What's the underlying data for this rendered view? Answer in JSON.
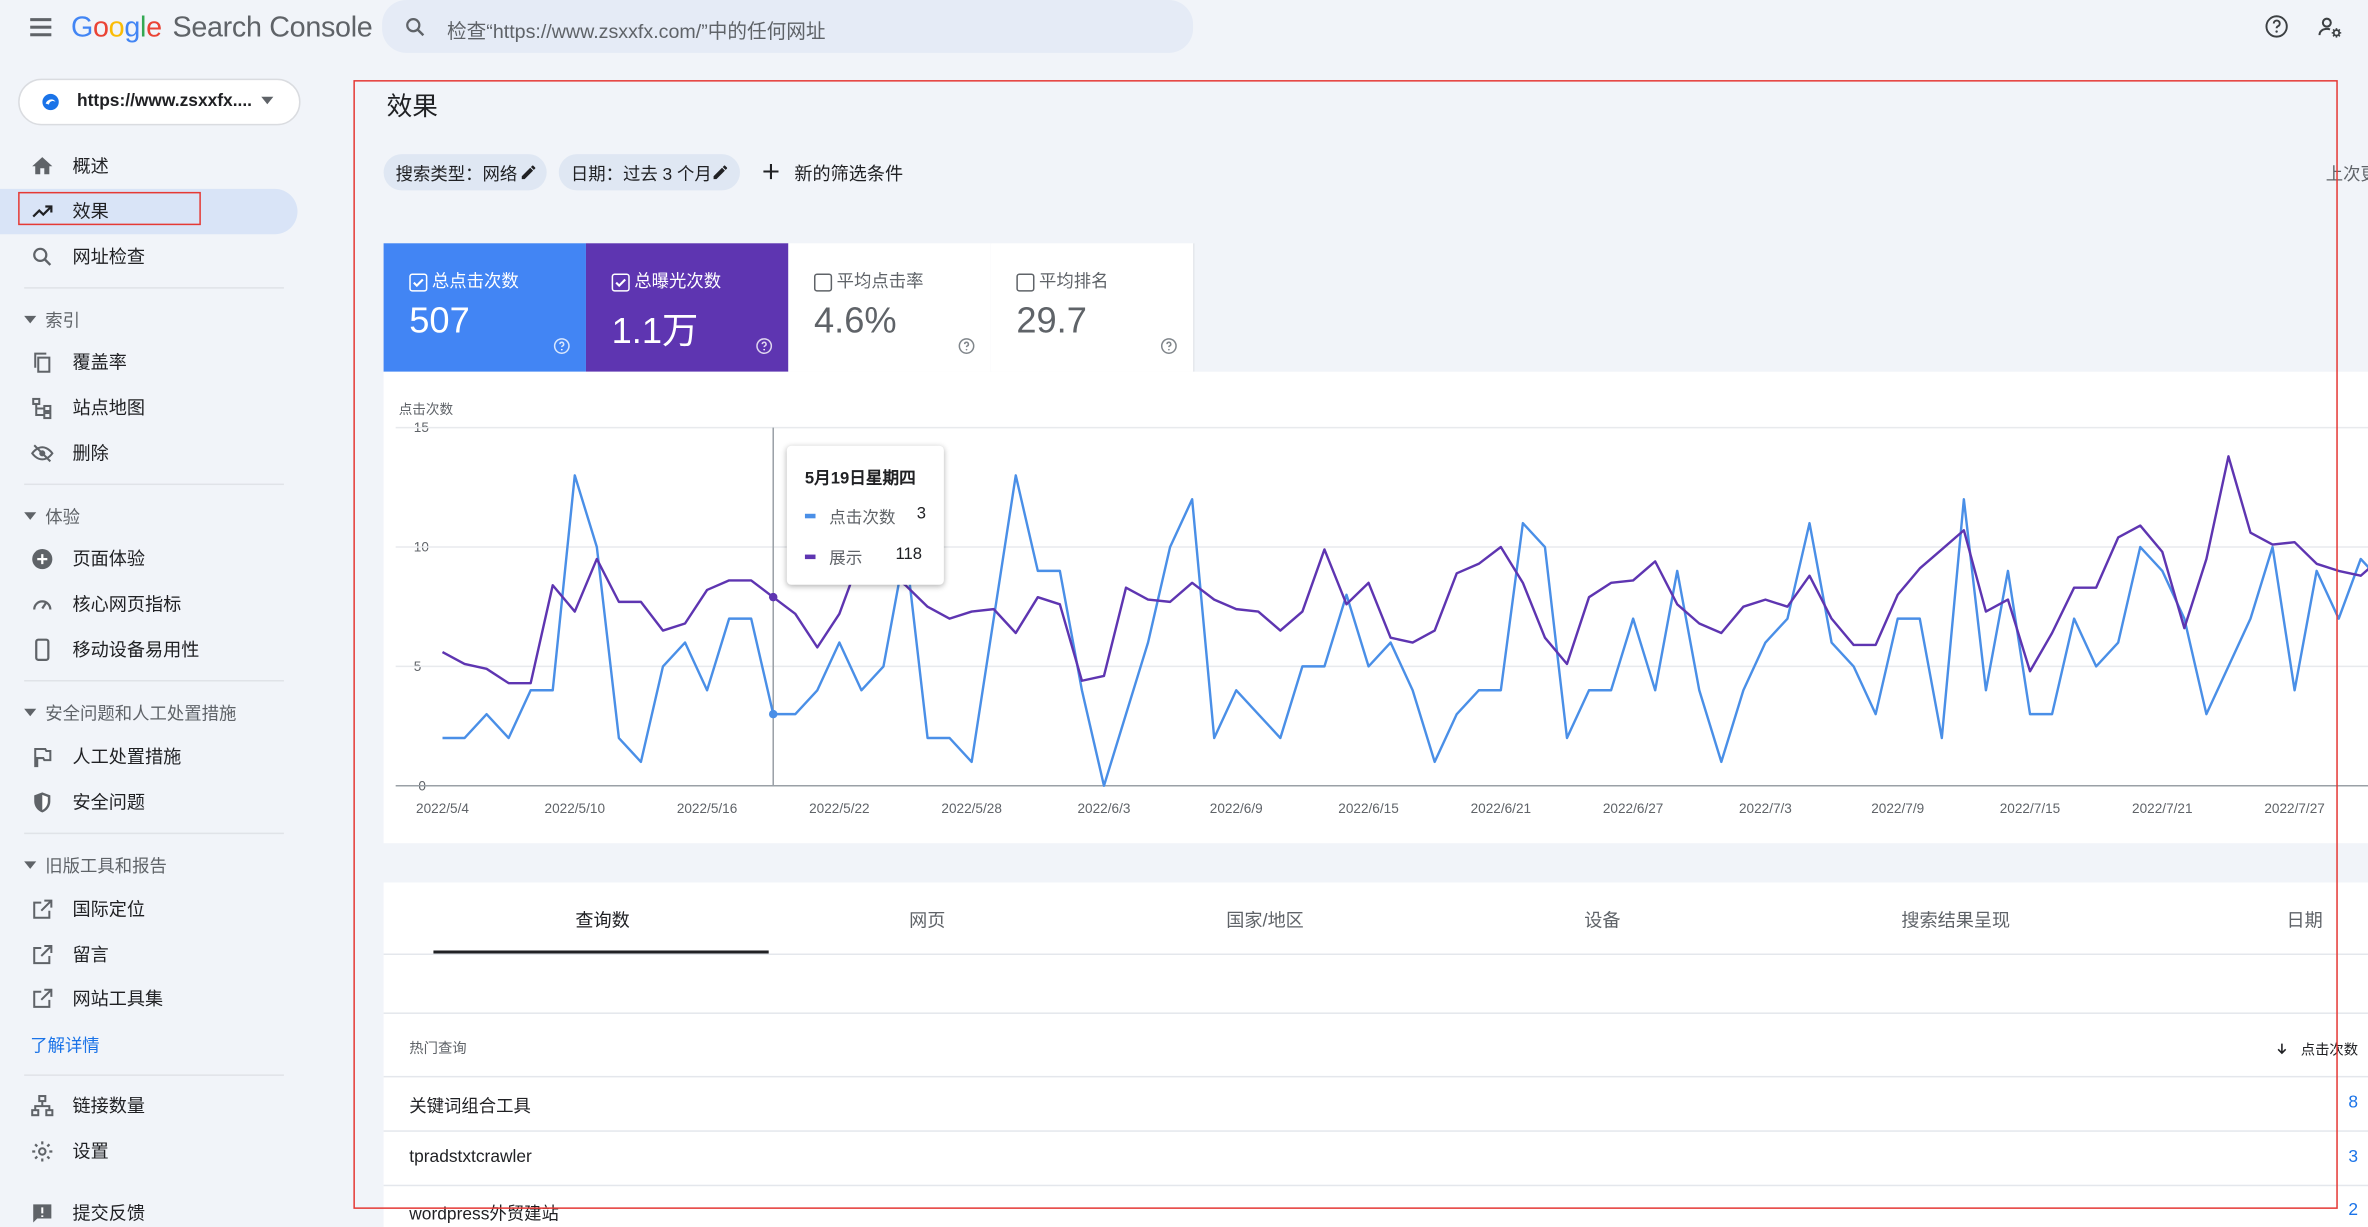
{
  "header": {
    "logo_google": [
      "G",
      "o",
      "o",
      "g",
      "l",
      "e"
    ],
    "logo_product": "Search Console",
    "search_placeholder": "检查“https://www.zsxxfx.com/”中的任何网址"
  },
  "sidebar": {
    "property": "https://www.zsxxfx....",
    "items": [
      {
        "label": "概述",
        "icon": "home-icon"
      },
      {
        "label": "效果",
        "icon": "trending-up-icon"
      },
      {
        "label": "网址检查",
        "icon": "search-icon"
      }
    ],
    "sections": [
      {
        "title": "索引",
        "items": [
          {
            "label": "覆盖率",
            "icon": "copy-icon"
          },
          {
            "label": "站点地图",
            "icon": "sitemap-icon"
          },
          {
            "label": "删除",
            "icon": "visibility-off-icon"
          }
        ]
      },
      {
        "title": "体验",
        "items": [
          {
            "label": "页面体验",
            "icon": "add-circle-icon"
          },
          {
            "label": "核心网页指标",
            "icon": "speed-icon"
          },
          {
            "label": "移动设备易用性",
            "icon": "smartphone-icon"
          }
        ]
      },
      {
        "title": "安全问题和人工处置措施",
        "items": [
          {
            "label": "人工处置措施",
            "icon": "flag-icon"
          },
          {
            "label": "安全问题",
            "icon": "shield-icon"
          }
        ]
      },
      {
        "title": "旧版工具和报告",
        "items": [
          {
            "label": "国际定位",
            "icon": "external-link-icon"
          },
          {
            "label": "留言",
            "icon": "external-link-icon"
          },
          {
            "label": "网站工具集",
            "icon": "external-link-icon"
          }
        ]
      }
    ],
    "learn_more": "了解详情",
    "footer_items": [
      {
        "label": "链接数量",
        "icon": "links-icon"
      },
      {
        "label": "设置",
        "icon": "gear-icon"
      },
      {
        "label": "提交反馈",
        "icon": "feedback-icon"
      }
    ]
  },
  "main": {
    "title": "效果",
    "filters": [
      "搜索类型：网络",
      "日期：过去 3 个月"
    ],
    "add_filter": "新的筛选条件",
    "last_updated": "上次更",
    "metrics": [
      {
        "label": "总点击次数",
        "value": "507",
        "checked": true,
        "color": "#4285f4"
      },
      {
        "label": "总曝光次数",
        "value": "1.1万",
        "checked": true,
        "color": "#5e35b1"
      },
      {
        "label": "平均点击率",
        "value": "4.6%",
        "checked": false
      },
      {
        "label": "平均排名",
        "value": "29.7",
        "checked": false
      }
    ],
    "tooltip": {
      "date": "5月19日星期四",
      "clicks_label": "点击次数",
      "clicks_value": "3",
      "impressions_label": "展示",
      "impressions_value": "118"
    },
    "tabs": [
      "查询数",
      "网页",
      "国家/地区",
      "设备",
      "搜索结果呈现",
      "日期"
    ],
    "table": {
      "col_query": "热门查询",
      "col_clicks": "点击次数",
      "rows": [
        {
          "query": "关键词组合工具",
          "clicks": "8"
        },
        {
          "query": "tpradstxtcrawler",
          "clicks": "3"
        },
        {
          "query": "wordpress外贸建站",
          "clicks": "2"
        }
      ]
    }
  },
  "chart_data": {
    "type": "line",
    "ylabel": "点击次数",
    "ylim": [
      0,
      15
    ],
    "y_ticks": [
      "15",
      "10",
      "5",
      "0"
    ],
    "x_tick_labels": [
      "2022/5/4",
      "2022/5/10",
      "2022/5/16",
      "2022/5/22",
      "2022/5/28",
      "2022/6/3",
      "2022/6/9",
      "2022/6/15",
      "2022/6/21",
      "2022/6/27",
      "2022/7/3",
      "2022/7/9",
      "2022/7/15",
      "2022/7/21",
      "2022/7/27"
    ],
    "x_start": "2022/5/4",
    "highlight_index": 15,
    "series": [
      {
        "name": "点击次数",
        "color": "#4a8fe7",
        "values": [
          2,
          2,
          3,
          2,
          4,
          4,
          13,
          10,
          2,
          1,
          5,
          6,
          4,
          7,
          7,
          3,
          3,
          4,
          6,
          4,
          5,
          10,
          2,
          2,
          1,
          7,
          13,
          9,
          9,
          4,
          0,
          3,
          6,
          10,
          12,
          2,
          4,
          3,
          2,
          5,
          5,
          8,
          5,
          6,
          4,
          1,
          3,
          4,
          4,
          11,
          10,
          2,
          4,
          4,
          7,
          4,
          9,
          4,
          1,
          4,
          6,
          7,
          11,
          6,
          5,
          3,
          7,
          7,
          2,
          12,
          4,
          9,
          3,
          3,
          7,
          5,
          6,
          10,
          9,
          7,
          3,
          5,
          7,
          10,
          4,
          9,
          7,
          9.5,
          8.5
        ]
      },
      {
        "name": "展示",
        "color": "#5e35b1",
        "values": [
          5.6,
          5.1,
          4.9,
          4.3,
          4.3,
          8.4,
          7.3,
          9.5,
          7.7,
          7.7,
          6.5,
          6.8,
          8.2,
          8.6,
          8.6,
          7.9,
          7.2,
          5.8,
          7.2,
          9.7,
          9.1,
          8.4,
          7.5,
          7.0,
          7.3,
          7.4,
          6.4,
          7.9,
          7.6,
          4.4,
          4.6,
          8.3,
          7.8,
          7.7,
          8.5,
          7.8,
          7.4,
          7.3,
          6.5,
          7.3,
          9.9,
          7.6,
          8.5,
          6.2,
          6.0,
          6.5,
          8.9,
          9.3,
          10.0,
          8.5,
          6.2,
          5.1,
          7.9,
          8.5,
          8.6,
          9.4,
          7.6,
          6.8,
          6.4,
          7.5,
          7.8,
          7.5,
          8.8,
          7.0,
          5.9,
          5.9,
          8.0,
          9.1,
          9.9,
          10.7,
          7.3,
          7.8,
          4.8,
          6.4,
          8.3,
          8.3,
          10.4,
          10.9,
          9.8,
          6.6,
          9.5,
          13.8,
          10.6,
          10.1,
          10.2,
          9.3,
          9.0,
          8.8,
          9.6
        ]
      }
    ]
  }
}
